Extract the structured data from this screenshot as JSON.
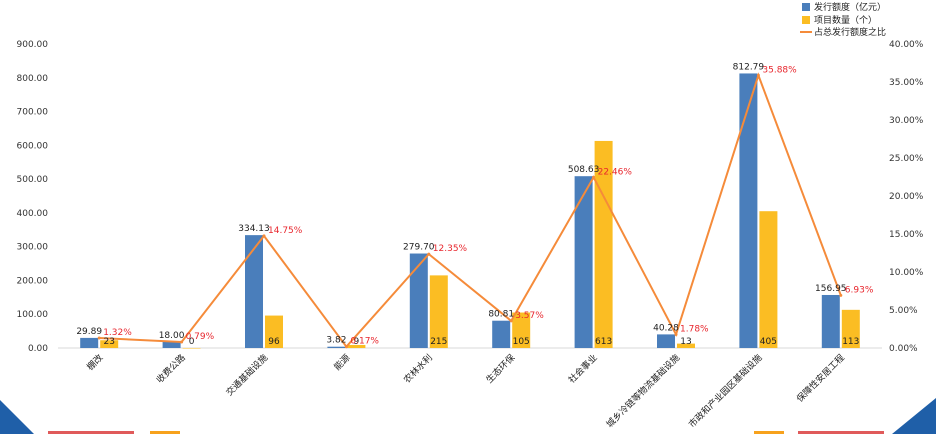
{
  "chart_data": {
    "type": "bar",
    "title": "",
    "xlabel": "",
    "ylabel": "",
    "ylim": [
      0,
      900
    ],
    "y2lim": [
      0,
      40
    ],
    "y_ticks": [
      "0.00",
      "100.00",
      "200.00",
      "300.00",
      "400.00",
      "500.00",
      "600.00",
      "700.00",
      "800.00",
      "900.00"
    ],
    "y2_ticks": [
      "0.00%",
      "5.00%",
      "10.00%",
      "15.00%",
      "20.00%",
      "25.00%",
      "30.00%",
      "35.00%",
      "40.00%"
    ],
    "categories": [
      "棚改",
      "收费公路",
      "交通基础设施",
      "能源",
      "农林水利",
      "生态环保",
      "社会事业",
      "城乡冷链等物流基础设施",
      "市政和产业园区基础设施",
      "保障性安居工程"
    ],
    "series": [
      {
        "name": "发行额度（亿元）",
        "kind": "bar",
        "color": "#4a7ebb",
        "values": [
          29.89,
          18.0,
          334.13,
          3.82,
          279.7,
          80.81,
          508.63,
          40.28,
          812.79,
          156.95
        ],
        "labels": [
          "29.89",
          "18.00",
          "334.13",
          "3.82",
          "279.70",
          "80.81",
          "508.63",
          "40.28",
          "812.79",
          "156.95"
        ]
      },
      {
        "name": "项目数量（个）",
        "kind": "bar",
        "color": "#fbbd23",
        "values": [
          23,
          0,
          96,
          9,
          215,
          105,
          613,
          13,
          405,
          113
        ],
        "labels": [
          "23",
          "0",
          "96",
          "9",
          "215",
          "105",
          "613",
          "13",
          "405",
          "113"
        ]
      },
      {
        "name": "占总发行额度之比",
        "kind": "line",
        "axis": "right",
        "color": "#f58b3a",
        "values": [
          1.32,
          0.79,
          14.75,
          0.17,
          12.35,
          3.57,
          22.46,
          1.78,
          35.88,
          6.93
        ],
        "labels": [
          "1.32%",
          "0.79%",
          "14.75%",
          "0.17%",
          "12.35%",
          "3.57%",
          "22.46%",
          "1.78%",
          "35.88%",
          "6.93%"
        ]
      }
    ],
    "legend_position": "top-right",
    "grid": false
  },
  "colors": {
    "axis": "#d9d9d9",
    "corner": "#1f5fa8",
    "footer_red": "#e05a5a",
    "footer_orange": "#f7a21d"
  }
}
